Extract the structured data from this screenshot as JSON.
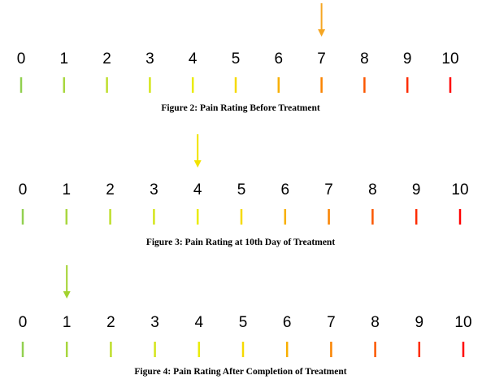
{
  "scales": [
    {
      "caption": "Figure 2: Pain Rating Before Treatment",
      "labels": [
        "0",
        "1",
        "2",
        "3",
        "4",
        "5",
        "6",
        "7",
        "8",
        "9",
        "10"
      ],
      "marked_value": 7,
      "marker_color": "#f5a623"
    },
    {
      "caption": "Figure 3: Pain Rating at 10th Day of Treatment",
      "labels": [
        "0",
        "1",
        "2",
        "3",
        "4",
        "5",
        "6",
        "7",
        "8",
        "9",
        "10"
      ],
      "marked_value": 4,
      "marker_color": "#f2e300"
    },
    {
      "caption": "Figure 4: Pain Rating After Completion of Treatment",
      "labels": [
        "0",
        "1",
        "2",
        "3",
        "4",
        "5",
        "6",
        "7",
        "8",
        "9",
        "10"
      ],
      "marked_value": 1,
      "marker_color": "#a2d22e"
    }
  ],
  "gradient_colors": [
    "#92d050",
    "#f5f000",
    "#ff0000"
  ]
}
